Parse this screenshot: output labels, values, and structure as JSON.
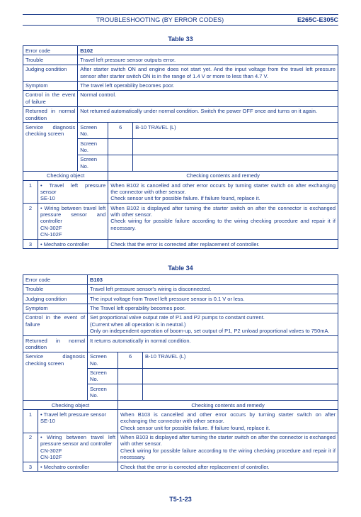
{
  "header": {
    "title": "TROUBLESHOOTING (BY ERROR CODES)",
    "code": "E265C-E305C"
  },
  "footer": "T5-1-23",
  "tables": [
    {
      "caption": "Table 33",
      "error_code": "B102",
      "trouble": "Travel left pressure sensor outputs error.",
      "judging": "After starter switch ON and engine does not start yet. And the input voltage from the travel left pressure sensor after starter switch ON is in the range of 1.4 V or more to less than 4.7 V.",
      "symptom": "The travel left operability becomes poor.",
      "control": "Normal control.",
      "returned": "Not returned automatically under normal condition. Switch the power OFF once and turns on it again.",
      "screen_no": "6",
      "screen_item": "B-10 TRAVEL (L)",
      "checks": [
        {
          "n": "1",
          "obj": "Travel left pressure sensor\nSE-10",
          "rem": "When B102 is cancelled and other error occurs by turning starter switch on after exchanging the connector with other sensor.\nCheck sensor unit for possible failure. If failure found, replace it."
        },
        {
          "n": "2",
          "obj": "Wiring between travel left pressure sensor and controller\nCN-302F\nCN-102F",
          "rem": "When B102 is displayed after turning the starter switch on after the connector is exchanged with other sensor.\nCheck wiring for possible failure according to the wiring checking procedure and repair it if necessary."
        },
        {
          "n": "3",
          "obj": "Mechatro controller",
          "rem": "Check that the error is corrected after replacement of controller."
        }
      ]
    },
    {
      "caption": "Table 34",
      "error_code": "B103",
      "trouble": "Travel left pressure sensor's wiring is disconnected.",
      "judging": "The input voltage from Travel left pressure sensor is 0.1 V or less.",
      "symptom": "The Travel left operability becomes poor.",
      "control": "Set proportional valve output rate of P1 and P2 pumps to constant current.\n(Current when all operation is in neutral.)\nOnly on independent operation of boom-up, set output of P1, P2 unload proportional valves to 750mA.",
      "returned": "It returns automatically in normal condition.",
      "screen_no": "6",
      "screen_item": "B-10 TRAVEL (L)",
      "checks": [
        {
          "n": "1",
          "obj": "Travel left pressure sensor\nSE-10",
          "rem": "When B103 is cancelled and other error occurs by turning starter switch on after exchanging the connector with other sensor.\nCheck sensor unit for possible failure. If failure found, replace it."
        },
        {
          "n": "2",
          "obj": "Wiring between travel left pressure sensor and controller\nCN-302F\nCN-102F",
          "rem": "When B103 is displayed after turning the starter switch on after the connector is exchanged with other sensor.\nCheck wiring for possible failure according to the wiring checking procedure and repair it if necessary."
        },
        {
          "n": "3",
          "obj": "Mechatro controller",
          "rem": "Check that the error is corrected after replacement of controller."
        }
      ]
    }
  ],
  "labels": {
    "error_code": "Error code",
    "trouble": "Trouble",
    "judging": "Judging condition",
    "symptom": "Symptom",
    "control": "Control in the event of failure",
    "returned": "Returned in normal condition",
    "service": "Service diagnosis checking screen",
    "screen_no": "Screen No.",
    "chk_obj": "Checking object",
    "chk_rem": "Checking contents and remedy"
  }
}
